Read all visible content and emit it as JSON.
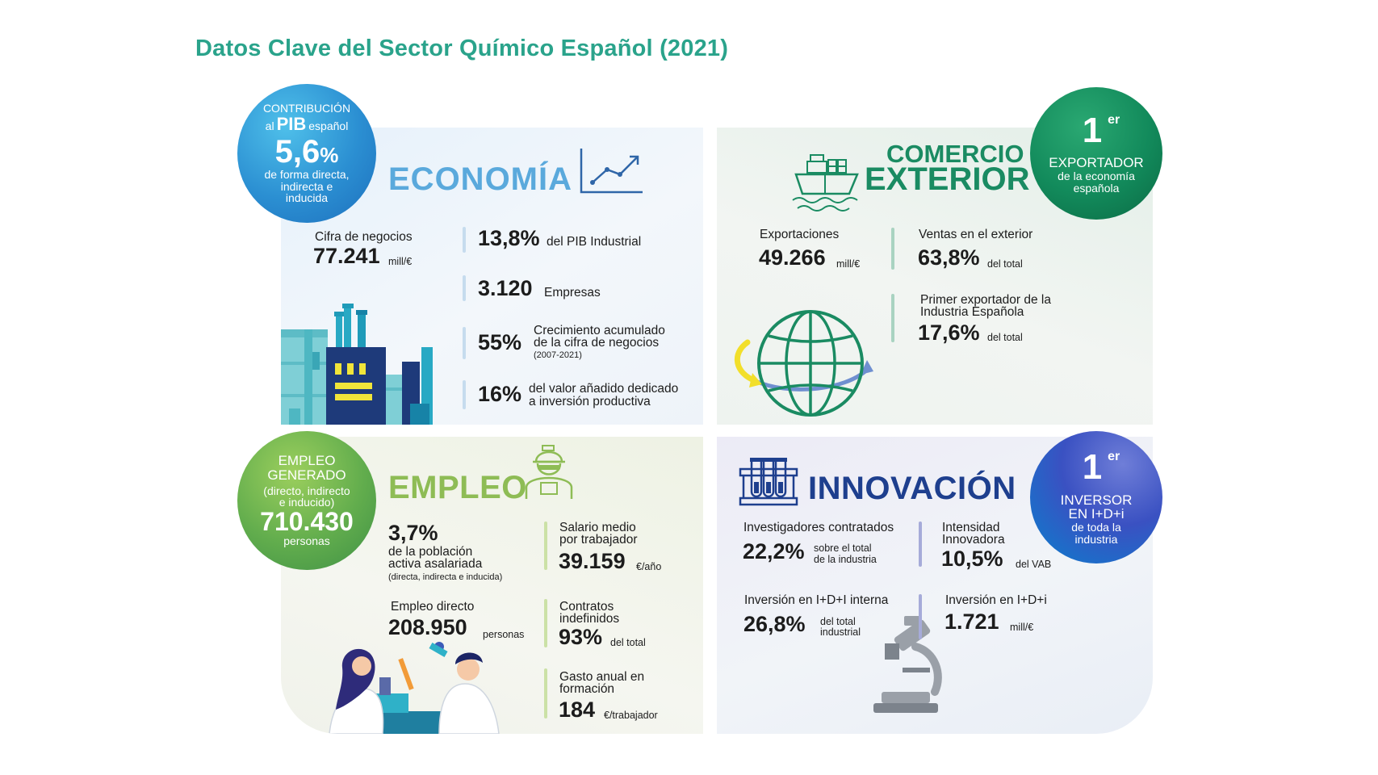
{
  "title": "Datos Clave del Sector Químico Español (2021)",
  "economia": {
    "heading": "ECONOMÍA",
    "circle": {
      "line1": "CONTRIBUCIÓN",
      "line2a": "al",
      "line2b": "PIB",
      "line2c": "español",
      "value": "5,6",
      "value_unit": "%",
      "line3": "de forma directa,",
      "line4": "indirecta e",
      "line5": "inducida"
    },
    "cifra_label": "Cifra de negocios",
    "cifra_value": "77.241",
    "cifra_unit": "mill/€",
    "stats": [
      {
        "value": "13,8%",
        "text": "del PIB Industrial"
      },
      {
        "value": "3.120",
        "text": "Empresas"
      },
      {
        "value": "55%",
        "text1": "Crecimiento acumulado",
        "text2": "de la cifra de negocios",
        "text3": "(2007-2021)"
      },
      {
        "value": "16%",
        "text1": "del valor añadido dedicado",
        "text2": "a inversión productiva"
      }
    ]
  },
  "comercio": {
    "heading1": "COMERCIO",
    "heading2": "EXTERIOR",
    "circle": {
      "ordinal": "1",
      "sup": "er",
      "line1": "EXPORTADOR",
      "line2": "de la economía",
      "line3": "española"
    },
    "exportaciones_label": "Exportaciones",
    "exportaciones_value": "49.266",
    "exportaciones_unit": "mill/€",
    "ventas_label": "Ventas en el exterior",
    "ventas_value": "63,8%",
    "ventas_unit": "del total",
    "primer_label1": "Primer exportador de la",
    "primer_label2": "Industria Española",
    "primer_value": "17,6%",
    "primer_unit": "del total"
  },
  "empleo": {
    "heading": "EMPLEO",
    "circle": {
      "line1": "EMPLEO",
      "line2": "GENERADO",
      "line3": "(directo, indirecto",
      "line4": "e inducido)",
      "value": "710.430",
      "line5": "personas"
    },
    "poblacion_value": "3,7%",
    "poblacion_text1": "de la población",
    "poblacion_text2": "activa asalariada",
    "poblacion_text3": "(directa, indirecta e inducida)",
    "directo_label": "Empleo directo",
    "directo_value": "208.950",
    "directo_unit": "personas",
    "salario_label1": "Salario medio",
    "salario_label2": "por trabajador",
    "salario_value": "39.159",
    "salario_unit": "€/año",
    "contratos_label1": "Contratos",
    "contratos_label2": "indefinidos",
    "contratos_value": "93%",
    "contratos_unit": "del total",
    "gasto_label1": "Gasto anual en",
    "gasto_label2": "formación",
    "gasto_value": "184",
    "gasto_unit": "€/trabajador"
  },
  "innovacion": {
    "heading": "INNOVACIÓN",
    "circle": {
      "ordinal": "1",
      "sup": "er",
      "line1": "INVERSOR",
      "line2": "EN I+D+i",
      "line3": "de toda la",
      "line4": "industria"
    },
    "investigadores_label": "Investigadores contratados",
    "investigadores_value": "22,2%",
    "investigadores_unit1": "sobre el total",
    "investigadores_unit2": "de la industria",
    "intensidad_label1": "Intensidad",
    "intensidad_label2": "Innovadora",
    "intensidad_value": "10,5%",
    "intensidad_unit": "del VAB",
    "interna_label": "Inversión en I+D+I interna",
    "interna_value": "26,8%",
    "interna_unit1": "del total",
    "interna_unit2": "industrial",
    "inversion_label": "Inversión en I+D+i",
    "inversion_value": "1.721",
    "inversion_unit": "mill/€"
  },
  "icons": [
    "trend-chart-icon",
    "factory-icon",
    "cargo-ship-icon",
    "globe-icon",
    "worker-icon",
    "scientists-icon",
    "test-tubes-icon",
    "microscope-icon"
  ],
  "colors": {
    "title": "#2aa38b",
    "economia": "#5aa9dc",
    "comercio": "#1a8b62",
    "empleo": "#8ebc55",
    "innovacion": "#1e3f8e"
  }
}
